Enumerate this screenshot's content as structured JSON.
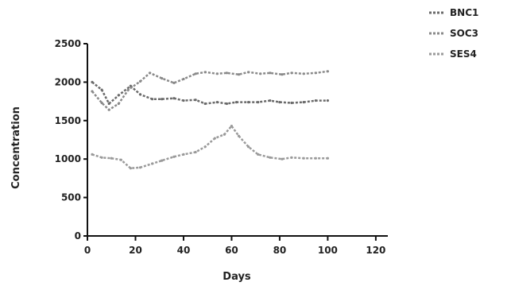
{
  "chart_data": {
    "type": "line",
    "title": "",
    "xlabel": "Days",
    "ylabel": "Concentration",
    "xlim": [
      0,
      125
    ],
    "ylim": [
      0,
      2500
    ],
    "xticks": [
      "0",
      "20",
      "40",
      "60",
      "80",
      "100",
      "120"
    ],
    "yticks": [
      "0",
      "500",
      "1000",
      "1500",
      "2000",
      "2500"
    ],
    "legend_position": "top-right",
    "grid": false,
    "series": [
      {
        "name": "BNC1",
        "color": "#6a6a6a",
        "points": [
          [
            2,
            2000
          ],
          [
            6,
            1900
          ],
          [
            9,
            1720
          ],
          [
            13,
            1830
          ],
          [
            18,
            1950
          ],
          [
            22,
            1840
          ],
          [
            27,
            1780
          ],
          [
            31,
            1780
          ],
          [
            36,
            1790
          ],
          [
            40,
            1760
          ],
          [
            45,
            1770
          ],
          [
            49,
            1720
          ],
          [
            54,
            1740
          ],
          [
            58,
            1720
          ],
          [
            62,
            1740
          ],
          [
            67,
            1740
          ],
          [
            71,
            1740
          ],
          [
            76,
            1760
          ],
          [
            80,
            1740
          ],
          [
            85,
            1730
          ],
          [
            90,
            1740
          ],
          [
            95,
            1760
          ],
          [
            100,
            1760
          ]
        ]
      },
      {
        "name": "SOC3",
        "color": "#8a8a8a",
        "points": [
          [
            2,
            1880
          ],
          [
            6,
            1730
          ],
          [
            9,
            1640
          ],
          [
            13,
            1720
          ],
          [
            17,
            1900
          ],
          [
            22,
            2010
          ],
          [
            26,
            2120
          ],
          [
            31,
            2050
          ],
          [
            36,
            1990
          ],
          [
            40,
            2040
          ],
          [
            45,
            2110
          ],
          [
            49,
            2130
          ],
          [
            54,
            2110
          ],
          [
            58,
            2120
          ],
          [
            63,
            2100
          ],
          [
            67,
            2130
          ],
          [
            72,
            2110
          ],
          [
            76,
            2120
          ],
          [
            81,
            2100
          ],
          [
            85,
            2120
          ],
          [
            90,
            2110
          ],
          [
            95,
            2120
          ],
          [
            100,
            2140
          ]
        ]
      },
      {
        "name": "SES4",
        "color": "#9a9a9a",
        "points": [
          [
            2,
            1060
          ],
          [
            6,
            1020
          ],
          [
            10,
            1010
          ],
          [
            14,
            990
          ],
          [
            18,
            880
          ],
          [
            22,
            890
          ],
          [
            27,
            940
          ],
          [
            31,
            980
          ],
          [
            36,
            1030
          ],
          [
            40,
            1060
          ],
          [
            45,
            1090
          ],
          [
            49,
            1160
          ],
          [
            53,
            1270
          ],
          [
            57,
            1320
          ],
          [
            60,
            1430
          ],
          [
            63,
            1300
          ],
          [
            67,
            1160
          ],
          [
            71,
            1060
          ],
          [
            76,
            1020
          ],
          [
            81,
            1000
          ],
          [
            85,
            1020
          ],
          [
            90,
            1010
          ],
          [
            95,
            1010
          ],
          [
            100,
            1010
          ]
        ]
      }
    ]
  }
}
